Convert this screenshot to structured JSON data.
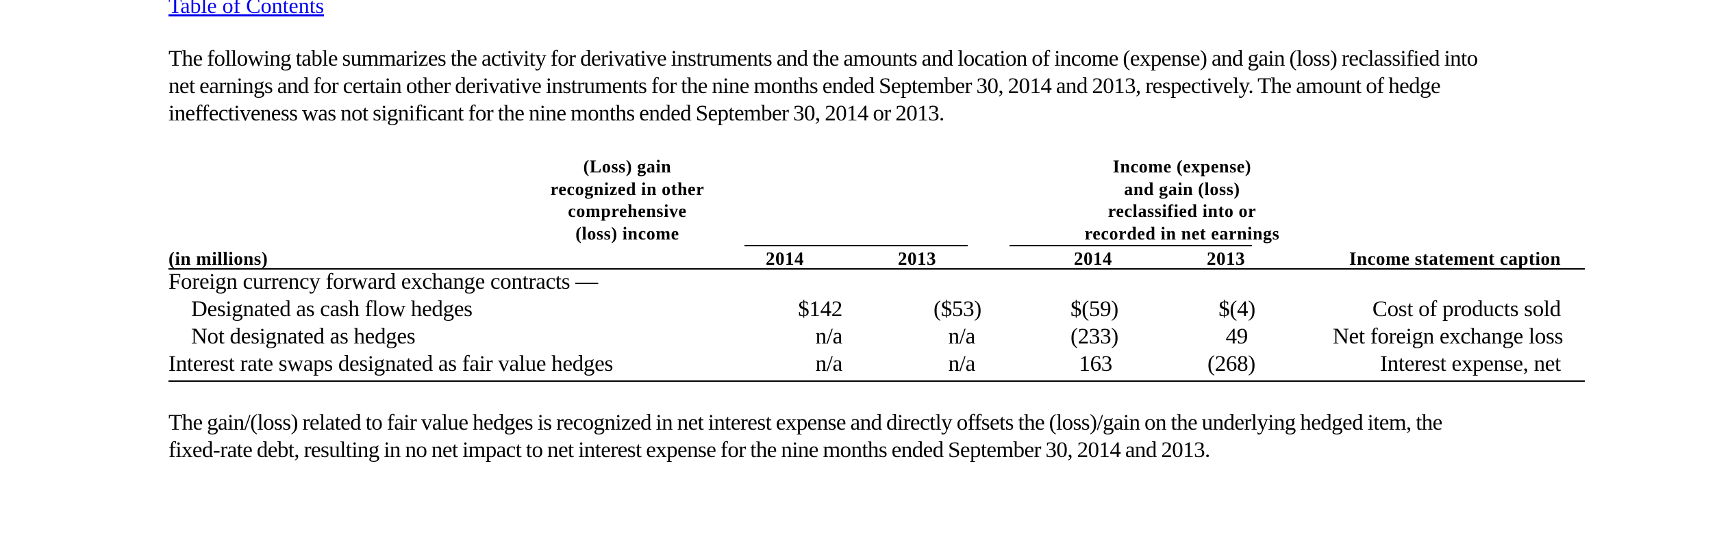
{
  "toc_link": "Table of Contents",
  "intro_lines": [
    "The following table summarizes the activity for derivative instruments and the amounts and location of income (expense) and gain (loss) reclassified into",
    "net earnings and for certain other derivative instruments for the nine months ended September 30, 2014 and 2013, respectively. The amount of hedge",
    "ineffectiveness was not significant for the nine months ended September 30, 2014 or 2013."
  ],
  "table": {
    "group1_lines": [
      "(Loss) gain",
      "recognized in other",
      "comprehensive",
      "(loss) income"
    ],
    "group2_lines": [
      "Income (expense)",
      "and gain (loss)",
      "reclassified into or",
      "recorded in net earnings"
    ],
    "units_label": "(in millions)",
    "year_cols": [
      "2014",
      "2013",
      "2014",
      "2013"
    ],
    "caption_header": "Income statement caption",
    "rows": [
      {
        "label": "Foreign currency forward exchange contracts —",
        "oci_2014": "",
        "oci_2013": "",
        "ne_2014": "",
        "ne_2013": "",
        "caption": ""
      },
      {
        "label": "Designated as cash flow hedges",
        "oci_2014": "$142",
        "oci_2013": "($53)",
        "ne_2014": "$(59)",
        "ne_2013": "$(4)",
        "caption": "Cost of products sold"
      },
      {
        "label": "Not designated as hedges",
        "oci_2014": "n/a",
        "oci_2013": "n/a",
        "ne_2014": "(233)",
        "ne_2013": "49",
        "caption": "Net foreign exchange loss"
      },
      {
        "label": "Interest rate swaps designated as fair value hedges",
        "oci_2014": "n/a",
        "oci_2013": "n/a",
        "ne_2014": "163",
        "ne_2013": "(268)",
        "caption": "Interest expense, net"
      }
    ]
  },
  "closing_lines": [
    "The gain/(loss) related to fair value hedges is recognized in net interest expense and directly offsets the (loss)/gain on the underlying hedged item, the",
    "fixed-rate debt, resulting in no net impact to net interest expense for the nine months ended September 30, 2014 and 2013."
  ]
}
